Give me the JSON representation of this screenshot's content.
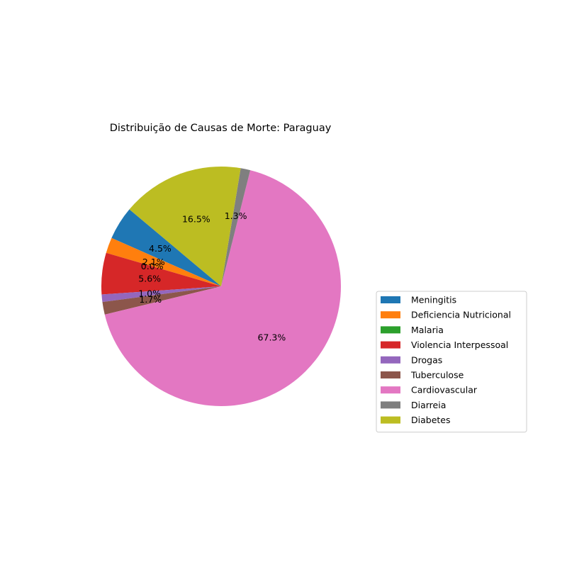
{
  "chart_data": {
    "type": "pie",
    "title": "Distribuição de Causas de Morte: Paraguay",
    "start_angle_deg": 140,
    "direction": "counterclockwise",
    "legend_position": "lower-right",
    "slices": [
      {
        "label": "Meningitis",
        "value": 4.5,
        "pct_label": "4.5%",
        "color": "#1f77b4"
      },
      {
        "label": "Deficiencia Nutricional",
        "value": 2.1,
        "pct_label": "2.1%",
        "color": "#ff7f0e"
      },
      {
        "label": "Malaria",
        "value": 0.0,
        "pct_label": "0.0%",
        "color": "#2ca02c"
      },
      {
        "label": "Violencia Interpessoal",
        "value": 5.6,
        "pct_label": "5.6%",
        "color": "#d62728"
      },
      {
        "label": "Drogas",
        "value": 1.0,
        "pct_label": "1.0%",
        "color": "#9467bd"
      },
      {
        "label": "Tuberculose",
        "value": 1.7,
        "pct_label": "1.7%",
        "color": "#8c564b"
      },
      {
        "label": "Cardiovascular",
        "value": 67.3,
        "pct_label": "67.3%",
        "color": "#e377c2"
      },
      {
        "label": "Diarreia",
        "value": 1.3,
        "pct_label": "1.3%",
        "color": "#7f7f7f"
      },
      {
        "label": "Diabetes",
        "value": 16.5,
        "pct_label": "16.5%",
        "color": "#bcbd22"
      }
    ]
  }
}
